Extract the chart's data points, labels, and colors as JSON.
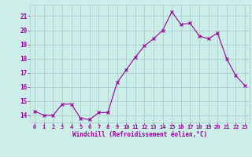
{
  "x": [
    0,
    1,
    2,
    3,
    4,
    5,
    6,
    7,
    8,
    9,
    10,
    11,
    12,
    13,
    14,
    15,
    16,
    17,
    18,
    19,
    20,
    21,
    22,
    23
  ],
  "y": [
    14.3,
    14.0,
    14.0,
    14.8,
    14.8,
    13.8,
    13.7,
    14.2,
    14.2,
    16.3,
    17.2,
    18.1,
    18.9,
    19.4,
    20.0,
    21.3,
    20.4,
    20.5,
    19.6,
    19.4,
    19.8,
    18.0,
    16.8,
    16.1
  ],
  "line_color": "#990099",
  "marker": "x",
  "marker_color": "#990099",
  "bg_color": "#cceee8",
  "grid_color": "#aacccc",
  "xlabel": "Windchill (Refroidissement éolien,°C)",
  "xlabel_color": "#990099",
  "tick_color": "#990099",
  "ylim": [
    13.5,
    21.8
  ],
  "xlim": [
    -0.5,
    23.5
  ],
  "yticks": [
    14,
    15,
    16,
    17,
    18,
    19,
    20,
    21
  ],
  "xticks": [
    0,
    1,
    2,
    3,
    4,
    5,
    6,
    7,
    8,
    9,
    10,
    11,
    12,
    13,
    14,
    15,
    16,
    17,
    18,
    19,
    20,
    21,
    22,
    23
  ],
  "figsize": [
    3.2,
    2.0
  ],
  "dpi": 100
}
